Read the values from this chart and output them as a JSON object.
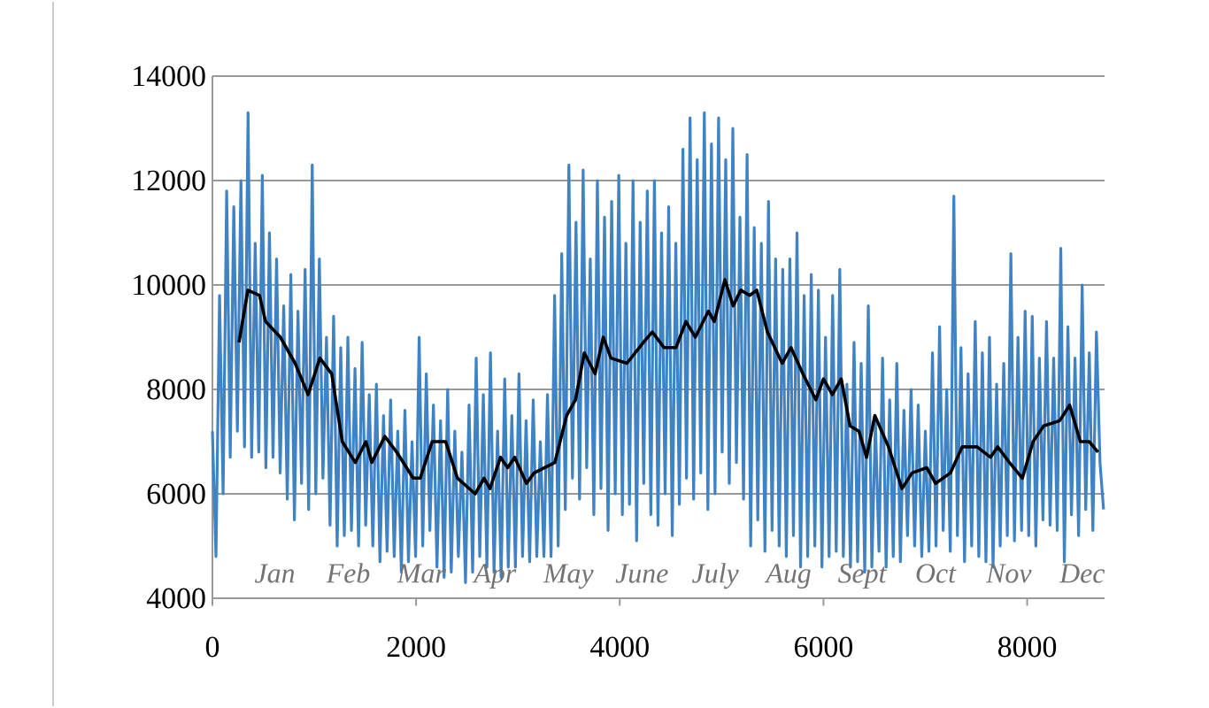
{
  "chart_data": {
    "type": "line",
    "xlim": [
      0,
      8760
    ],
    "xticks": [
      0,
      2000,
      4000,
      6000,
      8000
    ],
    "ylim": [
      4000,
      14000
    ],
    "yticks": [
      4000,
      6000,
      8000,
      10000,
      12000,
      14000
    ],
    "grid": "y",
    "annotations": [
      "Jan",
      "Feb",
      "Mar",
      "Apr",
      "May",
      "June",
      "July",
      "Aug",
      "Sept",
      "Oct",
      "Nov",
      "Dec"
    ],
    "series": [
      {
        "color": "#3f83c4",
        "x": [
          0,
          35,
          70,
          105,
          140,
          175,
          210,
          245,
          280,
          315,
          350,
          385,
          420,
          455,
          490,
          525,
          560,
          595,
          630,
          665,
          700,
          735,
          770,
          805,
          840,
          875,
          910,
          945,
          980,
          1015,
          1050,
          1085,
          1120,
          1155,
          1190,
          1225,
          1260,
          1295,
          1330,
          1365,
          1400,
          1435,
          1470,
          1505,
          1540,
          1575,
          1610,
          1645,
          1680,
          1715,
          1750,
          1785,
          1820,
          1855,
          1890,
          1925,
          1960,
          1995,
          2030,
          2065,
          2100,
          2135,
          2170,
          2205,
          2240,
          2275,
          2310,
          2345,
          2380,
          2415,
          2450,
          2485,
          2520,
          2555,
          2590,
          2625,
          2660,
          2695,
          2730,
          2765,
          2800,
          2835,
          2870,
          2905,
          2940,
          2975,
          3010,
          3045,
          3080,
          3115,
          3150,
          3185,
          3220,
          3255,
          3290,
          3325,
          3360,
          3395,
          3430,
          3465,
          3500,
          3535,
          3570,
          3605,
          3640,
          3675,
          3710,
          3745,
          3780,
          3815,
          3850,
          3885,
          3920,
          3955,
          3990,
          4025,
          4060,
          4095,
          4130,
          4165,
          4200,
          4235,
          4270,
          4305,
          4340,
          4375,
          4410,
          4445,
          4480,
          4515,
          4550,
          4585,
          4620,
          4655,
          4690,
          4725,
          4760,
          4795,
          4830,
          4865,
          4900,
          4935,
          4970,
          5005,
          5040,
          5075,
          5110,
          5145,
          5180,
          5215,
          5250,
          5285,
          5320,
          5355,
          5390,
          5425,
          5460,
          5495,
          5530,
          5565,
          5600,
          5635,
          5670,
          5705,
          5740,
          5775,
          5810,
          5845,
          5880,
          5915,
          5950,
          5985,
          6020,
          6055,
          6090,
          6125,
          6160,
          6195,
          6230,
          6265,
          6300,
          6335,
          6370,
          6405,
          6440,
          6475,
          6510,
          6545,
          6580,
          6615,
          6650,
          6685,
          6720,
          6755,
          6790,
          6825,
          6860,
          6895,
          6930,
          6965,
          7000,
          7035,
          7070,
          7105,
          7140,
          7175,
          7210,
          7245,
          7280,
          7315,
          7350,
          7385,
          7420,
          7455,
          7490,
          7525,
          7560,
          7595,
          7630,
          7665,
          7700,
          7735,
          7770,
          7805,
          7840,
          7875,
          7910,
          7945,
          7980,
          8015,
          8050,
          8085,
          8120,
          8155,
          8190,
          8225,
          8260,
          8295,
          8330,
          8365,
          8400,
          8435,
          8470,
          8505,
          8540,
          8575,
          8610,
          8645,
          8680,
          8715,
          8750
        ],
        "values": [
          7200,
          4800,
          9800,
          6000,
          11800,
          6700,
          11500,
          7200,
          12000,
          6900,
          13300,
          6700,
          10800,
          6800,
          12100,
          6500,
          11000,
          6700,
          10500,
          6400,
          9600,
          5900,
          10200,
          5500,
          9500,
          6200,
          10300,
          5700,
          12300,
          6000,
          10500,
          6300,
          9000,
          5400,
          9400,
          5000,
          8800,
          5200,
          9000,
          5300,
          8400,
          5000,
          8900,
          5400,
          7900,
          5000,
          8100,
          4700,
          7500,
          4900,
          7800,
          4800,
          7200,
          4500,
          7600,
          4700,
          7000,
          4800,
          9000,
          5000,
          8300,
          5300,
          7700,
          4600,
          7400,
          4400,
          8000,
          4500,
          7200,
          4800,
          6800,
          4300,
          7700,
          4500,
          8600,
          4800,
          7900,
          4600,
          8700,
          4500,
          7200,
          4400,
          8200,
          4600,
          7500,
          4600,
          8300,
          4800,
          7400,
          4700,
          7800,
          4800,
          7000,
          4800,
          7900,
          4800,
          9800,
          5000,
          10600,
          5700,
          12300,
          6300,
          11200,
          5900,
          12200,
          6500,
          10500,
          5600,
          12000,
          6100,
          11300,
          5300,
          11600,
          6000,
          12100,
          5600,
          10800,
          5800,
          12000,
          5100,
          11200,
          6200,
          11800,
          5600,
          12000,
          5400,
          11000,
          6000,
          11500,
          5200,
          10800,
          5800,
          12600,
          6300,
          13200,
          5900,
          12400,
          6400,
          13300,
          5700,
          12700,
          6000,
          13200,
          6800,
          12400,
          6200,
          13000,
          6600,
          11300,
          5900,
          12500,
          5000,
          11100,
          5500,
          10800,
          4900,
          11600,
          5300,
          10500,
          5000,
          10300,
          4800,
          10500,
          5200,
          11000,
          4600,
          9800,
          4800,
          10200,
          5000,
          9900,
          4600,
          9000,
          4800,
          9800,
          4900,
          10300,
          4800,
          8100,
          4600,
          8900,
          4700,
          8500,
          4500,
          9600,
          4600,
          7400,
          4900,
          8600,
          4600,
          7800,
          4800,
          8500,
          4700,
          7600,
          5200,
          8000,
          5000,
          7700,
          4800,
          7200,
          4900,
          8700,
          5000,
          9200,
          5300,
          8000,
          4900,
          11700,
          5200,
          8800,
          4700,
          8300,
          5000,
          9300,
          4800,
          8700,
          4700,
          9000,
          4600,
          8100,
          5000,
          8500,
          5200,
          10600,
          5100,
          9000,
          5300,
          9500,
          5200,
          9400,
          5000,
          8600,
          5500,
          9300,
          5400,
          8600,
          5300,
          10700,
          4700,
          9200,
          5600,
          8600,
          5200,
          10000,
          5700,
          8700,
          5300,
          9100,
          6600,
          5700
        ]
      },
      {
        "color": "#000000",
        "x": [
          261,
          348,
          463,
          522,
          667,
          812,
          939,
          1055,
          1171,
          1275,
          1403,
          1507,
          1565,
          1693,
          1809,
          1971,
          2041,
          2157,
          2290,
          2406,
          2580,
          2667,
          2725,
          2829,
          2899,
          2968,
          3084,
          3159,
          3362,
          3478,
          3565,
          3652,
          3757,
          3838,
          3913,
          4070,
          4232,
          4319,
          4435,
          4551,
          4649,
          4742,
          4870,
          4928,
          5032,
          5113,
          5188,
          5275,
          5345,
          5449,
          5594,
          5681,
          5797,
          5925,
          6000,
          6087,
          6174,
          6261,
          6348,
          6423,
          6504,
          6638,
          6771,
          6870,
          7014,
          7101,
          7246,
          7362,
          7507,
          7640,
          7710,
          7826,
          7953,
          8058,
          8162,
          8319,
          8417,
          8522,
          8609,
          8696
        ],
        "values": [
          8900,
          9900,
          9800,
          9300,
          9000,
          8500,
          7900,
          8600,
          8300,
          7000,
          6600,
          7000,
          6600,
          7100,
          6800,
          6300,
          6300,
          7000,
          7000,
          6300,
          6000,
          6300,
          6100,
          6700,
          6500,
          6700,
          6200,
          6400,
          6600,
          7500,
          7800,
          8700,
          8300,
          9000,
          8600,
          8500,
          8900,
          9100,
          8800,
          8800,
          9300,
          9000,
          9500,
          9300,
          10100,
          9600,
          9900,
          9800,
          9900,
          9100,
          8500,
          8800,
          8300,
          7800,
          8200,
          7900,
          8200,
          7300,
          7200,
          6700,
          7500,
          6900,
          6100,
          6400,
          6500,
          6200,
          6400,
          6900,
          6900,
          6700,
          6900,
          6600,
          6300,
          7000,
          7300,
          7400,
          7700,
          7000,
          7000,
          6800
        ]
      }
    ]
  }
}
